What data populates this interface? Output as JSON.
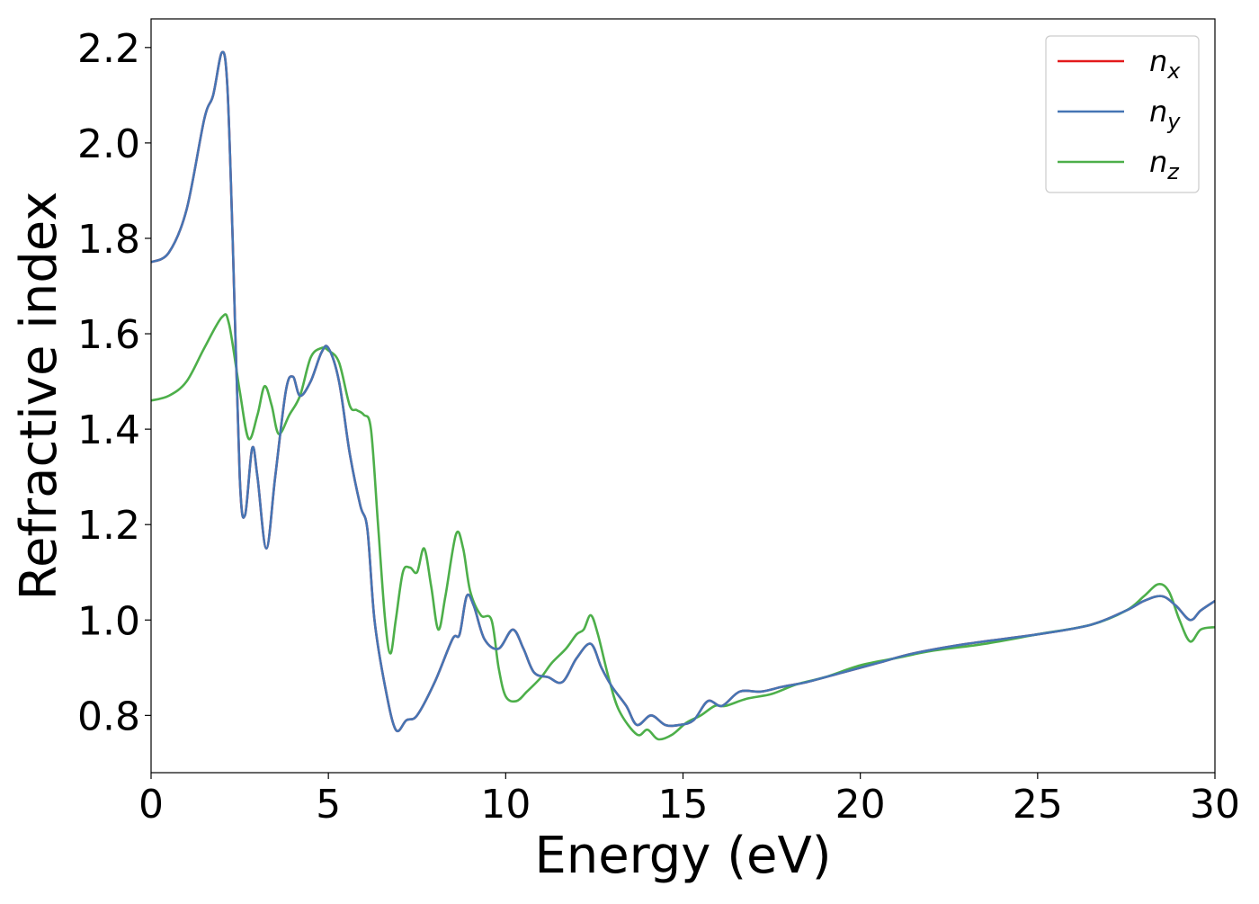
{
  "chart_data": {
    "type": "line",
    "title": "",
    "xlabel": "Energy (eV)",
    "ylabel": "Refractive index",
    "xlim": [
      0,
      30
    ],
    "ylim": [
      0.68,
      2.26
    ],
    "xticks": [
      0,
      5,
      10,
      15,
      20,
      25,
      30
    ],
    "xtick_labels": [
      "0",
      "5",
      "10",
      "15",
      "20",
      "25",
      "30"
    ],
    "yticks": [
      0.8,
      1.0,
      1.2,
      1.4,
      1.6,
      1.8,
      2.0,
      2.2
    ],
    "ytick_labels": [
      "0.8",
      "1.0",
      "1.2",
      "1.4",
      "1.6",
      "1.8",
      "2.0",
      "2.2"
    ],
    "grid": false,
    "legend_position": "top-right",
    "series": [
      {
        "name": "n",
        "subscript": "x",
        "color": "#e31a1c",
        "points": [
          [
            0,
            1.75
          ],
          [
            0.5,
            1.77
          ],
          [
            1.0,
            1.86
          ],
          [
            1.5,
            2.05
          ],
          [
            1.75,
            2.1
          ],
          [
            2.0,
            2.19
          ],
          [
            2.15,
            2.12
          ],
          [
            2.3,
            1.8
          ],
          [
            2.5,
            1.3
          ],
          [
            2.65,
            1.22
          ],
          [
            2.85,
            1.36
          ],
          [
            3.0,
            1.3
          ],
          [
            3.25,
            1.15
          ],
          [
            3.5,
            1.3
          ],
          [
            3.8,
            1.48
          ],
          [
            4.0,
            1.51
          ],
          [
            4.2,
            1.47
          ],
          [
            4.5,
            1.5
          ],
          [
            4.8,
            1.56
          ],
          [
            5.0,
            1.57
          ],
          [
            5.3,
            1.5
          ],
          [
            5.6,
            1.35
          ],
          [
            5.9,
            1.24
          ],
          [
            6.1,
            1.19
          ],
          [
            6.3,
            1.0
          ],
          [
            6.6,
            0.86
          ],
          [
            6.9,
            0.77
          ],
          [
            7.2,
            0.79
          ],
          [
            7.5,
            0.8
          ],
          [
            8.0,
            0.87
          ],
          [
            8.5,
            0.96
          ],
          [
            8.7,
            0.97
          ],
          [
            8.9,
            1.05
          ],
          [
            9.1,
            1.03
          ],
          [
            9.4,
            0.96
          ],
          [
            9.8,
            0.94
          ],
          [
            10.2,
            0.98
          ],
          [
            10.5,
            0.94
          ],
          [
            10.8,
            0.89
          ],
          [
            11.2,
            0.88
          ],
          [
            11.6,
            0.87
          ],
          [
            12.0,
            0.92
          ],
          [
            12.4,
            0.95
          ],
          [
            12.7,
            0.9
          ],
          [
            13.0,
            0.86
          ],
          [
            13.4,
            0.82
          ],
          [
            13.7,
            0.78
          ],
          [
            14.1,
            0.8
          ],
          [
            14.5,
            0.78
          ],
          [
            14.9,
            0.78
          ],
          [
            15.3,
            0.79
          ],
          [
            15.7,
            0.83
          ],
          [
            16.1,
            0.82
          ],
          [
            16.6,
            0.85
          ],
          [
            17.2,
            0.85
          ],
          [
            17.8,
            0.86
          ],
          [
            18.5,
            0.87
          ],
          [
            19.5,
            0.89
          ],
          [
            20.5,
            0.91
          ],
          [
            21.5,
            0.93
          ],
          [
            23.0,
            0.95
          ],
          [
            25.0,
            0.97
          ],
          [
            26.5,
            0.99
          ],
          [
            27.5,
            1.02
          ],
          [
            28.0,
            1.04
          ],
          [
            28.5,
            1.05
          ],
          [
            28.9,
            1.03
          ],
          [
            29.3,
            1.0
          ],
          [
            29.6,
            1.02
          ],
          [
            30.0,
            1.04
          ]
        ]
      },
      {
        "name": "n",
        "subscript": "y",
        "color": "#4575b4",
        "points": [
          [
            0,
            1.75
          ],
          [
            0.5,
            1.77
          ],
          [
            1.0,
            1.86
          ],
          [
            1.5,
            2.05
          ],
          [
            1.75,
            2.1
          ],
          [
            2.0,
            2.19
          ],
          [
            2.15,
            2.12
          ],
          [
            2.3,
            1.8
          ],
          [
            2.5,
            1.3
          ],
          [
            2.65,
            1.22
          ],
          [
            2.85,
            1.36
          ],
          [
            3.0,
            1.3
          ],
          [
            3.25,
            1.15
          ],
          [
            3.5,
            1.3
          ],
          [
            3.8,
            1.48
          ],
          [
            4.0,
            1.51
          ],
          [
            4.2,
            1.47
          ],
          [
            4.5,
            1.5
          ],
          [
            4.8,
            1.56
          ],
          [
            5.0,
            1.57
          ],
          [
            5.3,
            1.5
          ],
          [
            5.6,
            1.35
          ],
          [
            5.9,
            1.24
          ],
          [
            6.1,
            1.19
          ],
          [
            6.3,
            1.0
          ],
          [
            6.6,
            0.86
          ],
          [
            6.9,
            0.77
          ],
          [
            7.2,
            0.79
          ],
          [
            7.5,
            0.8
          ],
          [
            8.0,
            0.87
          ],
          [
            8.5,
            0.96
          ],
          [
            8.7,
            0.97
          ],
          [
            8.9,
            1.05
          ],
          [
            9.1,
            1.03
          ],
          [
            9.4,
            0.96
          ],
          [
            9.8,
            0.94
          ],
          [
            10.2,
            0.98
          ],
          [
            10.5,
            0.94
          ],
          [
            10.8,
            0.89
          ],
          [
            11.2,
            0.88
          ],
          [
            11.6,
            0.87
          ],
          [
            12.0,
            0.92
          ],
          [
            12.4,
            0.95
          ],
          [
            12.7,
            0.9
          ],
          [
            13.0,
            0.86
          ],
          [
            13.4,
            0.82
          ],
          [
            13.7,
            0.78
          ],
          [
            14.1,
            0.8
          ],
          [
            14.5,
            0.78
          ],
          [
            14.9,
            0.78
          ],
          [
            15.3,
            0.79
          ],
          [
            15.7,
            0.83
          ],
          [
            16.1,
            0.82
          ],
          [
            16.6,
            0.85
          ],
          [
            17.2,
            0.85
          ],
          [
            17.8,
            0.86
          ],
          [
            18.5,
            0.87
          ],
          [
            19.5,
            0.89
          ],
          [
            20.5,
            0.91
          ],
          [
            21.5,
            0.93
          ],
          [
            23.0,
            0.95
          ],
          [
            25.0,
            0.97
          ],
          [
            26.5,
            0.99
          ],
          [
            27.5,
            1.02
          ],
          [
            28.0,
            1.04
          ],
          [
            28.5,
            1.05
          ],
          [
            28.9,
            1.03
          ],
          [
            29.3,
            1.0
          ],
          [
            29.6,
            1.02
          ],
          [
            30.0,
            1.04
          ]
        ]
      },
      {
        "name": "n",
        "subscript": "z",
        "color": "#4daf4a",
        "points": [
          [
            0,
            1.46
          ],
          [
            0.5,
            1.47
          ],
          [
            1.0,
            1.5
          ],
          [
            1.5,
            1.57
          ],
          [
            2.0,
            1.635
          ],
          [
            2.2,
            1.62
          ],
          [
            2.5,
            1.48
          ],
          [
            2.75,
            1.38
          ],
          [
            3.0,
            1.43
          ],
          [
            3.2,
            1.49
          ],
          [
            3.4,
            1.45
          ],
          [
            3.6,
            1.39
          ],
          [
            3.9,
            1.43
          ],
          [
            4.2,
            1.47
          ],
          [
            4.5,
            1.55
          ],
          [
            4.8,
            1.57
          ],
          [
            5.0,
            1.565
          ],
          [
            5.3,
            1.54
          ],
          [
            5.6,
            1.45
          ],
          [
            5.8,
            1.44
          ],
          [
            6.0,
            1.43
          ],
          [
            6.2,
            1.4
          ],
          [
            6.4,
            1.2
          ],
          [
            6.6,
            1.0
          ],
          [
            6.75,
            0.93
          ],
          [
            6.9,
            1.0
          ],
          [
            7.1,
            1.1
          ],
          [
            7.3,
            1.11
          ],
          [
            7.5,
            1.1
          ],
          [
            7.7,
            1.15
          ],
          [
            7.9,
            1.07
          ],
          [
            8.1,
            0.98
          ],
          [
            8.3,
            1.05
          ],
          [
            8.6,
            1.18
          ],
          [
            8.8,
            1.15
          ],
          [
            9.0,
            1.06
          ],
          [
            9.3,
            1.01
          ],
          [
            9.6,
            1.0
          ],
          [
            9.8,
            0.9
          ],
          [
            10.0,
            0.84
          ],
          [
            10.3,
            0.83
          ],
          [
            10.6,
            0.85
          ],
          [
            11.0,
            0.88
          ],
          [
            11.3,
            0.91
          ],
          [
            11.7,
            0.94
          ],
          [
            12.0,
            0.97
          ],
          [
            12.2,
            0.98
          ],
          [
            12.4,
            1.01
          ],
          [
            12.6,
            0.97
          ],
          [
            12.9,
            0.88
          ],
          [
            13.2,
            0.81
          ],
          [
            13.7,
            0.76
          ],
          [
            14.0,
            0.77
          ],
          [
            14.3,
            0.75
          ],
          [
            14.7,
            0.76
          ],
          [
            15.1,
            0.785
          ],
          [
            15.5,
            0.8
          ],
          [
            15.9,
            0.82
          ],
          [
            16.2,
            0.82
          ],
          [
            16.8,
            0.835
          ],
          [
            17.5,
            0.845
          ],
          [
            18.2,
            0.865
          ],
          [
            19.0,
            0.88
          ],
          [
            20.0,
            0.905
          ],
          [
            21.0,
            0.92
          ],
          [
            22.0,
            0.935
          ],
          [
            23.5,
            0.95
          ],
          [
            25.0,
            0.97
          ],
          [
            26.5,
            0.99
          ],
          [
            27.5,
            1.02
          ],
          [
            28.0,
            1.05
          ],
          [
            28.4,
            1.075
          ],
          [
            28.7,
            1.06
          ],
          [
            29.0,
            1.0
          ],
          [
            29.3,
            0.955
          ],
          [
            29.6,
            0.98
          ],
          [
            30.0,
            0.985
          ]
        ]
      }
    ]
  }
}
